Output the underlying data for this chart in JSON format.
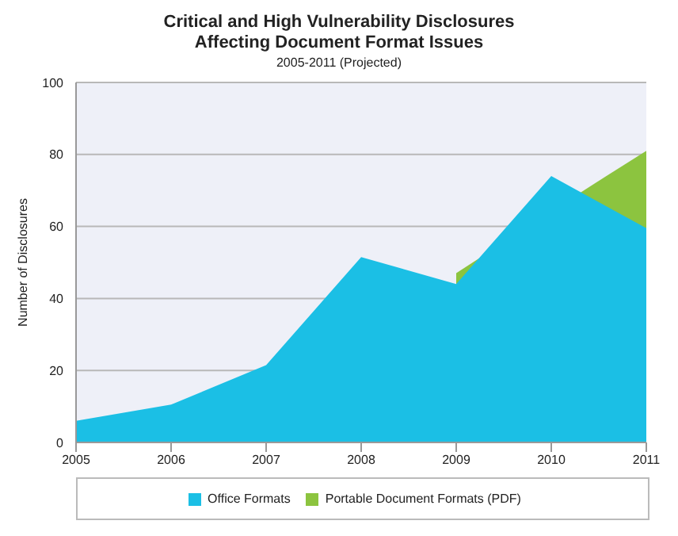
{
  "chart_data": {
    "type": "area",
    "title": "Critical and High Vulnerability Disclosures Affecting Document Format Issues",
    "subtitle": "2005-2011 (Projected)",
    "ylabel": "Number of Disclosures",
    "x": [
      2005,
      2006,
      2007,
      2008,
      2009,
      2010,
      2011
    ],
    "series": [
      {
        "name": "Office Formats",
        "color": "#1bbfe5",
        "values": [
          6,
          10.5,
          21.5,
          51.5,
          44,
          74,
          59.5
        ]
      },
      {
        "name": "Portable Document Formats (PDF)",
        "color": "#8cc43f",
        "x": [
          2009,
          2010.4,
          2011
        ],
        "values": [
          47,
          71,
          81
        ]
      }
    ],
    "xlim": [
      2005,
      2011
    ],
    "xticks": [
      2005,
      2006,
      2007,
      2008,
      2009,
      2010,
      2011
    ],
    "ylim": [
      0,
      100
    ],
    "yticks": [
      0,
      20,
      40,
      60,
      80,
      100
    ],
    "grid": "y",
    "legend": "bottom"
  }
}
